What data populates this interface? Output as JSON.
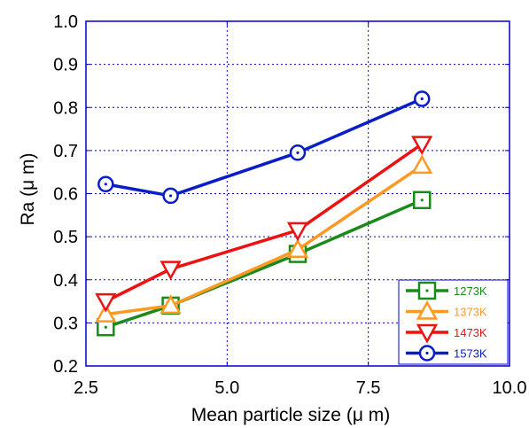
{
  "chart_data": {
    "type": "line",
    "xlabel": "Mean particle size (μ m)",
    "ylabel": "Ra (μ m)",
    "xlim": [
      2.5,
      10.0
    ],
    "ylim": [
      0.2,
      1.0
    ],
    "x_ticks": [
      "2.5",
      "5.0",
      "7.5",
      "10.0"
    ],
    "y_ticks": [
      "0.2",
      "0.3",
      "0.4",
      "0.5",
      "0.6",
      "0.7",
      "0.8",
      "0.9",
      "1.0"
    ],
    "grid": true,
    "legend_position": "bottom-right",
    "x": [
      2.85,
      4.0,
      6.25,
      8.45
    ],
    "series": [
      {
        "name": "1273K",
        "values": [
          0.29,
          0.34,
          0.46,
          0.585
        ],
        "color": "#1a8a1a",
        "marker": "square-dot"
      },
      {
        "name": "1373K",
        "values": [
          0.32,
          0.34,
          0.47,
          0.665
        ],
        "color": "#ff9922",
        "marker": "triangle-up"
      },
      {
        "name": "1473K",
        "values": [
          0.35,
          0.425,
          0.515,
          0.715
        ],
        "color": "#ee1111",
        "marker": "triangle-down"
      },
      {
        "name": "1573K",
        "values": [
          0.622,
          0.595,
          0.695,
          0.82
        ],
        "color": "#0a1ec8",
        "marker": "circle-dot"
      }
    ]
  }
}
